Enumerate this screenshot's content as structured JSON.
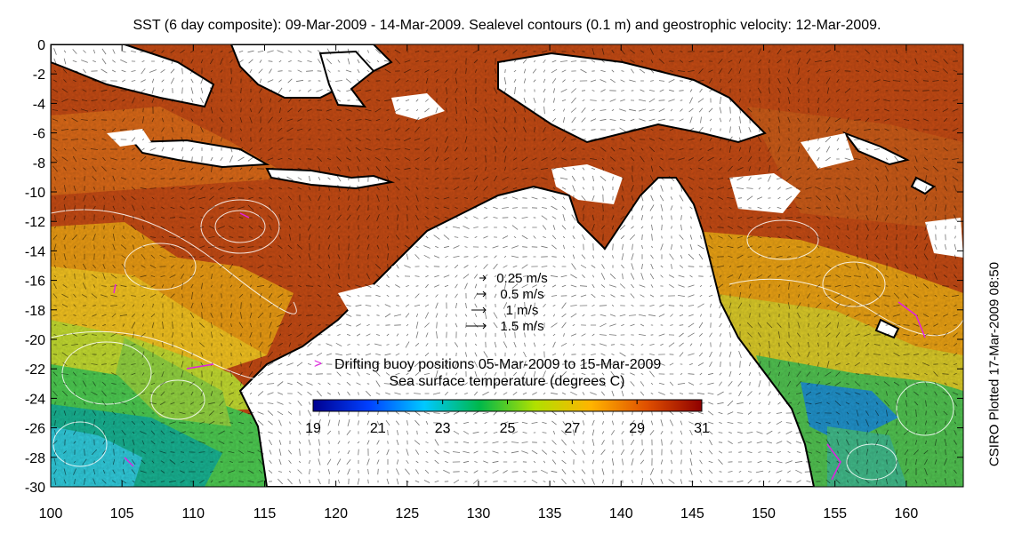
{
  "title": "SST (6 day composite): 09-Mar-2009 - 14-Mar-2009. Sealevel contours (0.1 m) and geostrophic velocity: 12-Mar-2009.",
  "side_note": "CSIRO Plotted 17-Mar-2009 08:50",
  "map": {
    "lon_range": [
      100,
      164
    ],
    "lat_range": [
      -30,
      0
    ],
    "x_ticks": [
      100,
      105,
      110,
      115,
      120,
      125,
      130,
      135,
      140,
      145,
      150,
      155,
      160
    ],
    "y_ticks": [
      0,
      -2,
      -4,
      -6,
      -8,
      -10,
      -12,
      -14,
      -16,
      -18,
      -20,
      -22,
      -24,
      -26,
      -28,
      -30
    ]
  },
  "velocity_legend": [
    {
      "label": "0.25 m/s",
      "speed": 0.25
    },
    {
      "label": "0.5 m/s",
      "speed": 0.5
    },
    {
      "label": "1 m/s",
      "speed": 1
    },
    {
      "label": "1.5 m/s",
      "speed": 1.5
    }
  ],
  "buoy_legend": {
    "symbol": ">",
    "label": "Drifting buoy positions 05-Mar-2009 to 15-Mar-2009",
    "color": "#e020e0"
  },
  "colorbar": {
    "title": "Sea surface temperature (degrees C)",
    "min": 19,
    "max": 31,
    "tick_labels": [
      "19",
      "21",
      "23",
      "25",
      "27",
      "29",
      "31"
    ],
    "colors": [
      "#00008f",
      "#0040ff",
      "#00c8ff",
      "#00b84a",
      "#b0e000",
      "#ffb400",
      "#e05000",
      "#8f0000"
    ]
  },
  "colors": {
    "land": "#ffffff",
    "coastline": "#000000",
    "contour": "#ffffff",
    "arrow": "#000000"
  }
}
